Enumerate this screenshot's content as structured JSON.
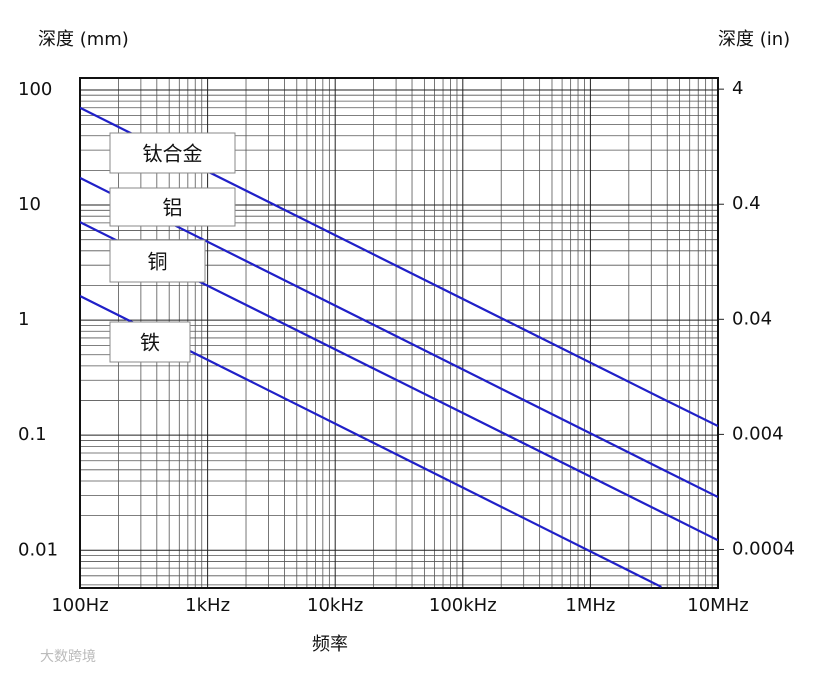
{
  "chart_data": {
    "type": "line",
    "y_label": "深度 (mm)",
    "y2_label": "深度 (in)",
    "x_label": "频率",
    "watermark": "大数跨境",
    "xscale": "log",
    "yscale": "log",
    "grid": true,
    "minor_grid": true,
    "x": [
      100,
      3600000,
      10000000
    ],
    "xlim": [
      100,
      10000000
    ],
    "xticks": [
      {
        "value": 100,
        "label": "100Hz"
      },
      {
        "value": 1000,
        "label": "1kHz"
      },
      {
        "value": 10000,
        "label": "10kHz"
      },
      {
        "value": 100000,
        "label": "100kHz"
      },
      {
        "value": 1000000,
        "label": "1MHz"
      },
      {
        "value": 10000000,
        "label": "10MHz"
      }
    ],
    "ylim": [
      0.0047,
      127
    ],
    "yticks": [
      100,
      10,
      1,
      0.1,
      0.01
    ],
    "y2lim": [
      0.000185,
      5
    ],
    "y2ticks": [
      4,
      0.4,
      0.04,
      0.004,
      0.0004
    ],
    "series": [
      {
        "name": "钛合金",
        "color": "#2020c8",
        "values": [
          70,
          0.21,
          0.12
        ]
      },
      {
        "name": "铝",
        "color": "#2020c8",
        "values": [
          17.2,
          0.051,
          0.029
        ]
      },
      {
        "name": "铜",
        "color": "#2020c8",
        "values": [
          7.1,
          0.0215,
          0.0122
        ]
      },
      {
        "name": "铁",
        "color": "#2020c8",
        "values": [
          1.62,
          0.0048,
          null
        ]
      }
    ]
  }
}
